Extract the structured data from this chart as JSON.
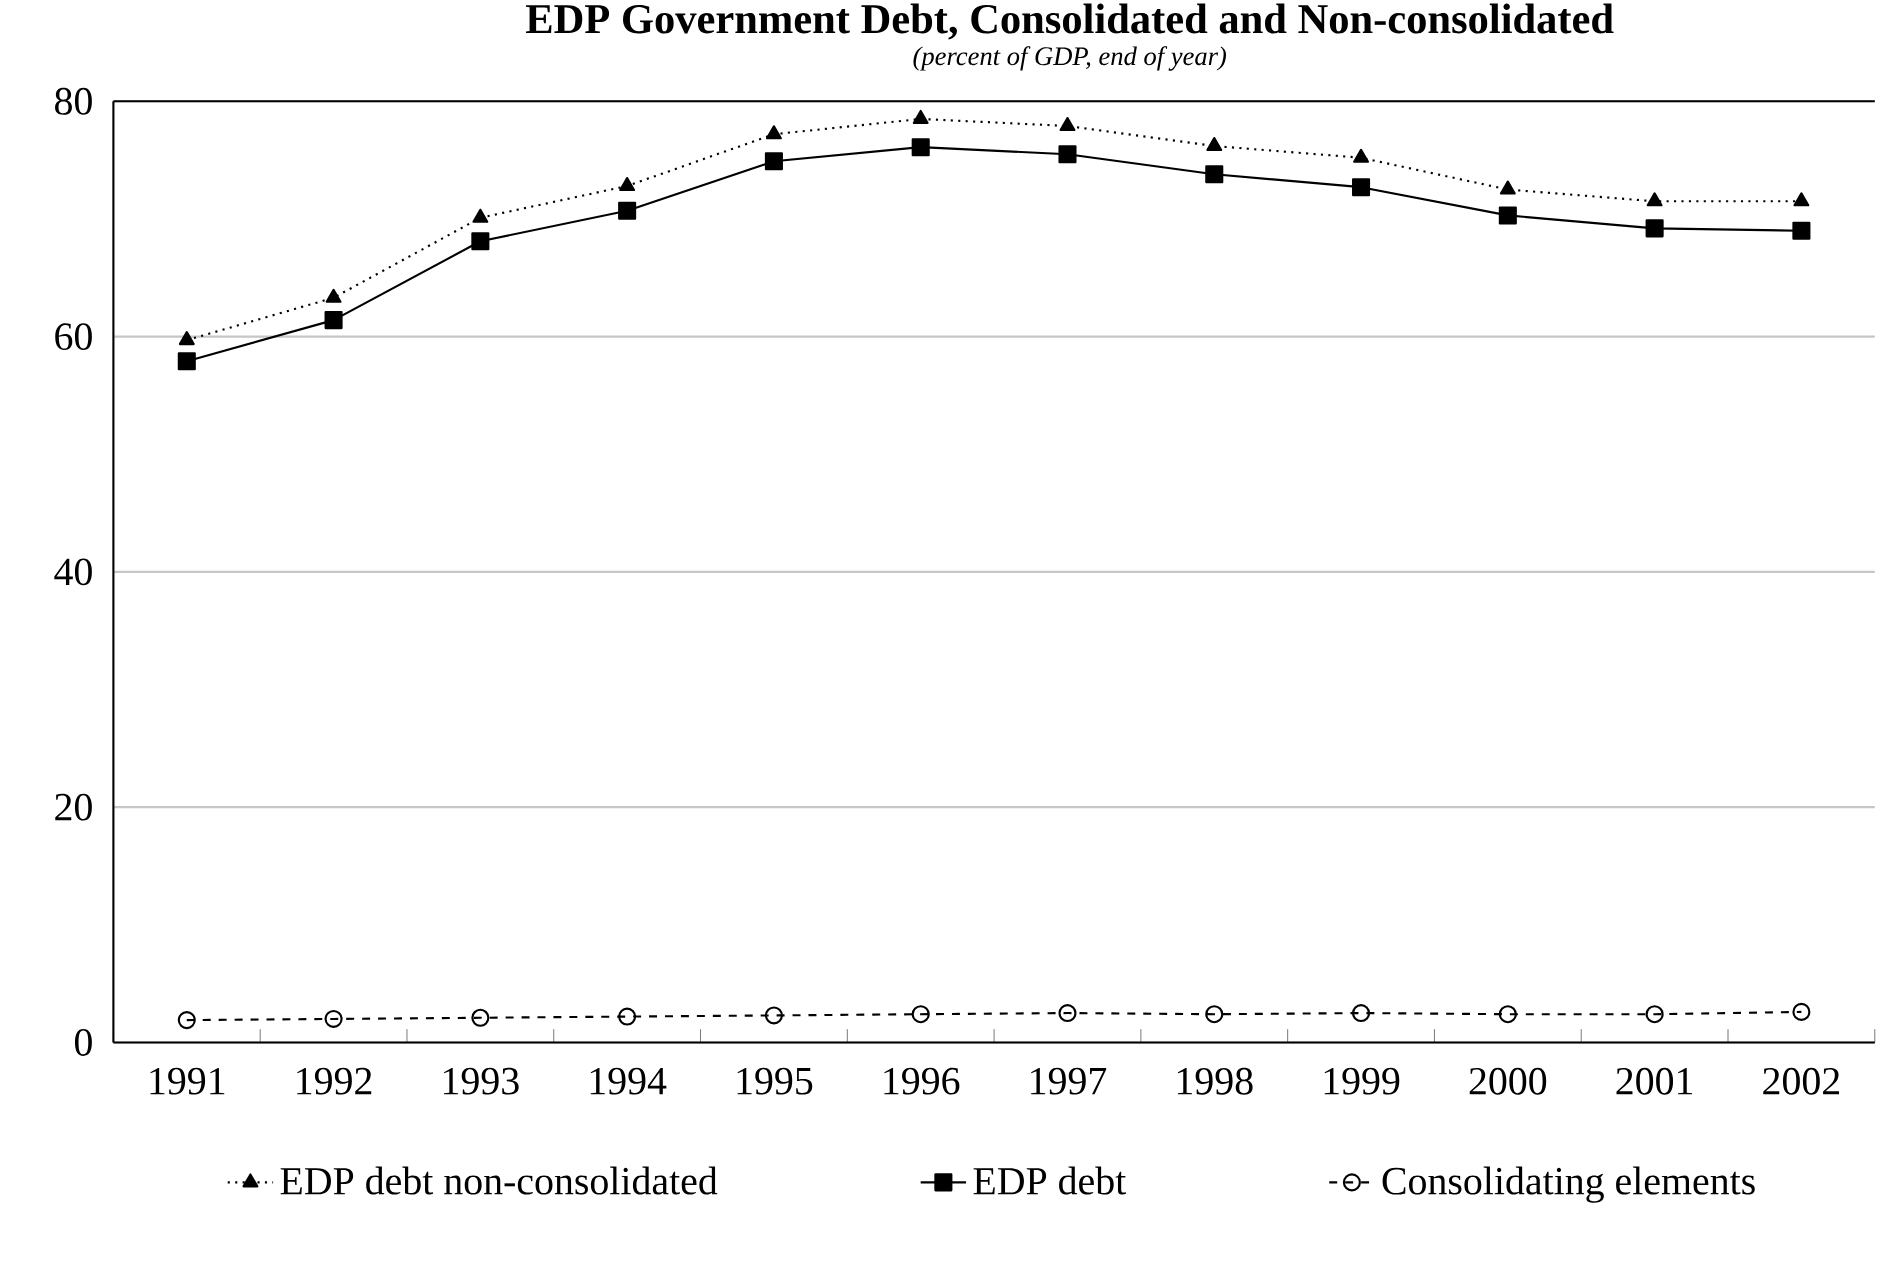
{
  "chart_data": {
    "type": "line",
    "title": "EDP Government Debt, Consolidated and Non-consolidated",
    "subtitle": "(percent of GDP, end of year)",
    "categories": [
      "1991",
      "1992",
      "1993",
      "1994",
      "1995",
      "1996",
      "1997",
      "1998",
      "1999",
      "2000",
      "2001",
      "2002"
    ],
    "series": [
      {
        "name": "EDP debt non-consolidated",
        "color": "#000000",
        "marker": "triangle",
        "line_style": "dotted",
        "values": [
          59.7,
          63.3,
          70.1,
          72.8,
          77.2,
          78.5,
          77.9,
          76.2,
          75.2,
          72.5,
          71.5,
          71.5
        ]
      },
      {
        "name": "EDP debt",
        "color": "#000000",
        "marker": "square",
        "line_style": "solid",
        "values": [
          57.9,
          61.4,
          68.1,
          70.7,
          74.9,
          76.1,
          75.5,
          73.8,
          72.7,
          70.3,
          69.2,
          69.0
        ]
      },
      {
        "name": "Consolidating elements",
        "color": "#000000",
        "marker": "circle",
        "line_style": "dashed",
        "values": [
          1.9,
          2.0,
          2.1,
          2.2,
          2.3,
          2.4,
          2.5,
          2.4,
          2.5,
          2.4,
          2.4,
          2.6
        ]
      }
    ],
    "ylim": [
      0,
      80
    ],
    "yticks": [
      0,
      20,
      40,
      60,
      80
    ],
    "grid": "y",
    "legend": "bottom"
  }
}
